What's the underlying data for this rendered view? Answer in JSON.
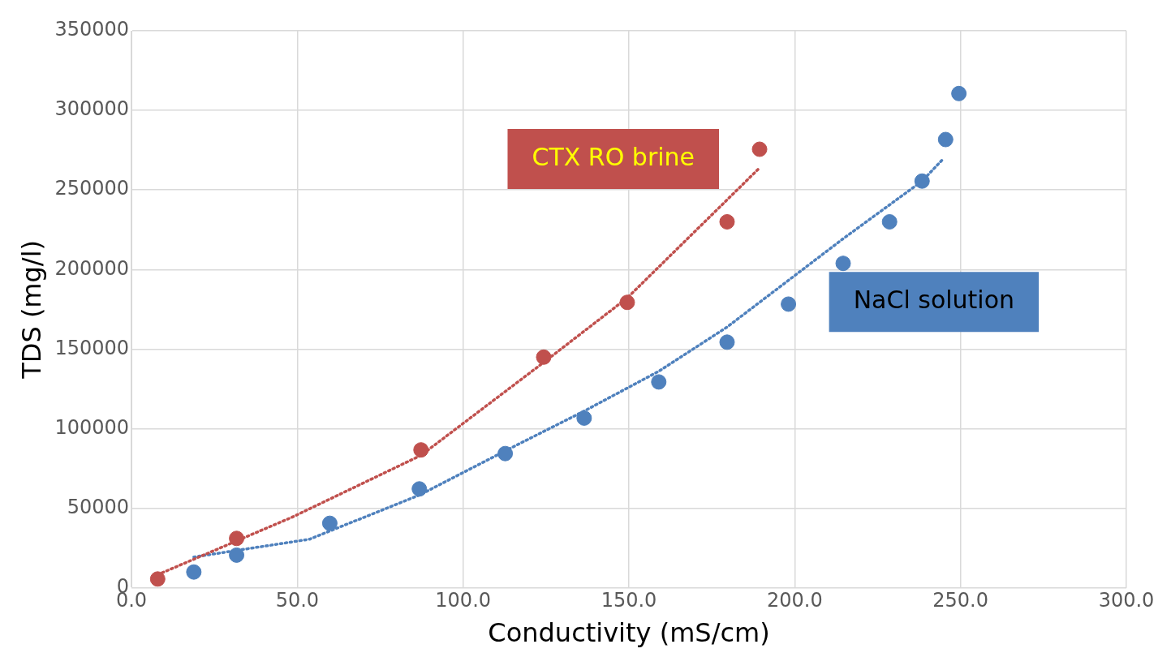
{
  "chart_data": {
    "type": "scatter",
    "xlabel": "Conductivity (mS/cm)",
    "ylabel": "TDS (mg/l)",
    "xlim": [
      0,
      300
    ],
    "xticks": [
      {
        "value": 0,
        "label": "0.0"
      },
      {
        "value": 50,
        "label": "50.0"
      },
      {
        "value": 100,
        "label": "100.0"
      },
      {
        "value": 150,
        "label": "150.0"
      },
      {
        "value": 200,
        "label": "200.0"
      },
      {
        "value": 250,
        "label": "250.0"
      },
      {
        "value": 300,
        "label": "300.0"
      }
    ],
    "ylim": [
      0,
      350000
    ],
    "yticks": [
      0,
      50000,
      100000,
      150000,
      200000,
      250000,
      300000,
      350000
    ],
    "grid": true,
    "marker": "circle",
    "series": [
      {
        "name": "CTX RO brine",
        "color": "#c0504d",
        "x": [
          7.9,
          31.7,
          87.3,
          124.3,
          149.5,
          179.6,
          189.4
        ],
        "values": [
          5600,
          31100,
          86700,
          145000,
          179400,
          230000,
          275600
        ]
      },
      {
        "name": "NaCl solution",
        "color": "#4f81bd",
        "x": [
          18.8,
          31.7,
          59.8,
          86.8,
          112.7,
          136.5,
          159,
          179.6,
          198.1,
          214.6,
          228.6,
          238.4,
          245.5,
          249.5
        ],
        "values": [
          10000,
          20600,
          40600,
          62200,
          84400,
          106700,
          129400,
          154400,
          178300,
          203900,
          230000,
          255600,
          281700,
          310600
        ]
      },
      {
        "type": "line",
        "color": "#c0504d",
        "line_style": "dotted",
        "marker": "none",
        "x": [
          7.9,
          48.4,
          87.3,
          124.3,
          149.5,
          189.4
        ],
        "values": [
          8300,
          44400,
          83300,
          141700,
          182200,
          263900
        ]
      },
      {
        "type": "line",
        "color": "#4f81bd",
        "line_style": "dotted",
        "marker": "none",
        "x": [
          18.8,
          53.7,
          86.8,
          112.7,
          136.5,
          159,
          179.6,
          214.6,
          238.4,
          244.7
        ],
        "values": [
          19400,
          30600,
          58300,
          86100,
          111100,
          136100,
          163900,
          219400,
          255600,
          269400
        ]
      }
    ]
  }
}
